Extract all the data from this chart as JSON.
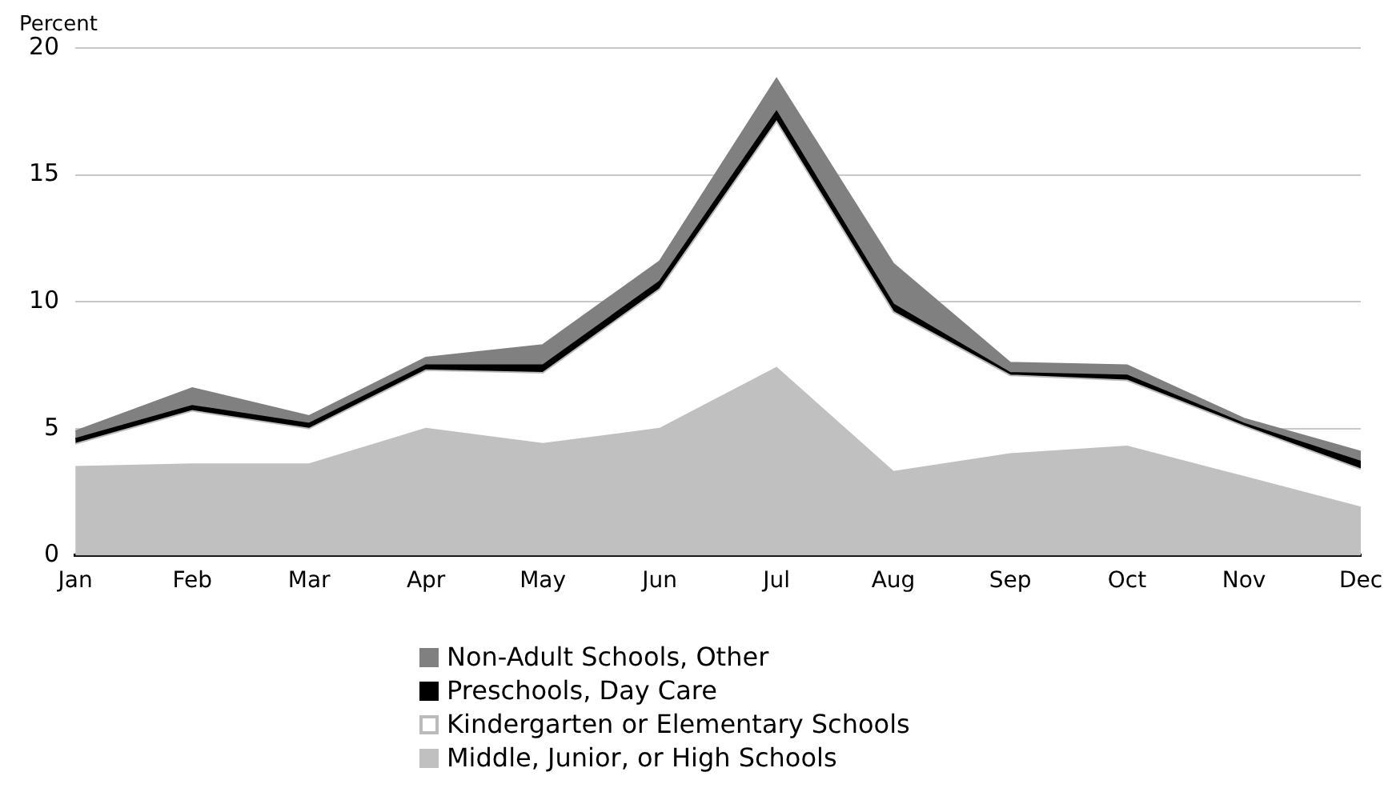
{
  "chart_data": {
    "type": "area",
    "stacked": true,
    "ylabel": "Percent",
    "categories": [
      "Jan",
      "Feb",
      "Mar",
      "Apr",
      "May",
      "Jun",
      "Jul",
      "Aug",
      "Sep",
      "Oct",
      "Nov",
      "Dec"
    ],
    "series": [
      {
        "name": "Middle, Junior, or High Schools",
        "color": "#c0c0c0",
        "values": [
          3.5,
          3.6,
          3.6,
          5.0,
          4.4,
          5.0,
          7.4,
          3.3,
          4.0,
          4.3,
          3.1,
          1.9
        ]
      },
      {
        "name": "Kindergarten or Elementary Schools",
        "color": "#ffffff",
        "values": [
          0.9,
          2.1,
          1.4,
          2.3,
          2.8,
          5.5,
          9.7,
          6.3,
          3.1,
          2.6,
          2.0,
          1.5
        ]
      },
      {
        "name": "Preschools, Day Care",
        "color": "#000000",
        "values": [
          0.2,
          0.2,
          0.2,
          0.2,
          0.3,
          0.3,
          0.4,
          0.3,
          0.1,
          0.2,
          0.1,
          0.3
        ]
      },
      {
        "name": "Non-Adult Schools, Other",
        "color": "#808080",
        "values": [
          0.3,
          0.7,
          0.3,
          0.3,
          0.8,
          0.8,
          1.3,
          1.6,
          0.4,
          0.4,
          0.2,
          0.4
        ]
      }
    ],
    "ylim": [
      0,
      20
    ],
    "yticks": [
      0,
      5,
      10,
      15,
      20
    ],
    "grid": "y",
    "legend": "bottom"
  }
}
